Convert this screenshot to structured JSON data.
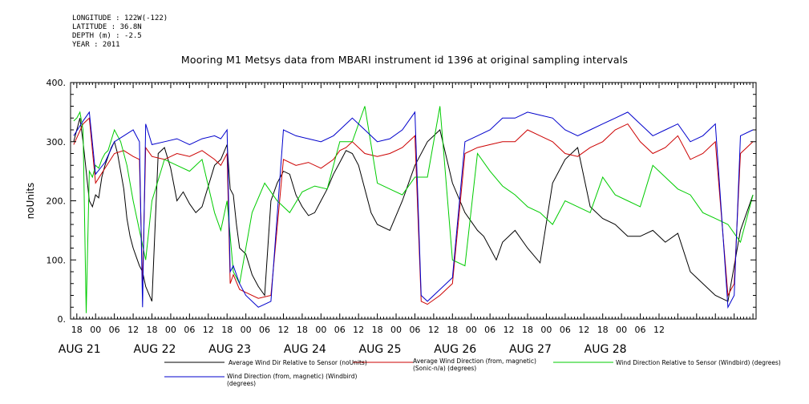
{
  "header": {
    "longitude": "LONGITUDE : 122W(-122)",
    "latitude": "LATITUDE : 36.8N",
    "depth": "DEPTH (m) : -2.5",
    "year": "YEAR : 2011"
  },
  "chart_data": {
    "type": "line",
    "title": "Mooring M1 Metsys data from MBARI instrument id 1396 at original sampling intervals",
    "ylabel": "noUnits",
    "xlabel": "",
    "ylim": [
      0,
      400
    ],
    "yticks": [
      "0.",
      "100.",
      "200.",
      "300.",
      "400."
    ],
    "xlim_hours": [
      -8,
      211
    ],
    "hour_tick_labels": [
      "18",
      "00",
      "06",
      "12",
      "18",
      "00",
      "06",
      "12",
      "18",
      "00",
      "06",
      "12",
      "18",
      "00",
      "06",
      "12",
      "18",
      "00",
      "06",
      "12",
      "18",
      "00",
      "06",
      "12",
      "18",
      "00",
      "06",
      "12",
      "18",
      "00",
      "06",
      "12"
    ],
    "day_labels": [
      "AUG 21",
      "AUG 22",
      "AUG 23",
      "AUG 24",
      "AUG 25",
      "AUG 26",
      "AUG 27",
      "AUG 28"
    ],
    "grid": false,
    "legend_placement": "bottom",
    "series": [
      {
        "name": "Average Wind Dir Relative to Sensor (noUnits)",
        "color": "#000000",
        "x": [
          -7,
          -6,
          -5,
          -4,
          -3,
          -2,
          -1,
          0,
          1,
          2,
          3,
          4,
          5,
          6,
          7,
          8,
          9,
          10,
          11,
          12,
          13,
          14,
          15,
          16,
          18,
          20,
          22,
          24,
          26,
          28,
          30,
          32,
          34,
          36,
          38,
          40,
          42,
          43,
          44,
          45,
          46,
          48,
          50,
          52,
          54,
          56,
          58,
          60,
          62,
          64,
          66,
          68,
          70,
          72,
          74,
          76,
          78,
          80,
          82,
          84,
          86,
          88,
          90,
          94,
          98,
          102,
          106,
          110,
          114,
          118,
          120,
          122,
          124,
          126,
          128,
          130,
          134,
          138,
          142,
          146,
          150,
          154,
          158,
          162,
          166,
          170,
          174,
          178,
          182,
          186,
          190,
          194,
          198,
          202,
          206,
          210
        ],
        "values": [
          300,
          320,
          340,
          300,
          250,
          200,
          190,
          210,
          205,
          240,
          260,
          275,
          290,
          300,
          280,
          250,
          220,
          170,
          140,
          120,
          105,
          90,
          80,
          55,
          30,
          280,
          290,
          255,
          200,
          215,
          195,
          180,
          190,
          225,
          260,
          270,
          295,
          220,
          210,
          160,
          120,
          110,
          75,
          55,
          40,
          200,
          230,
          250,
          245,
          210,
          190,
          175,
          180,
          200,
          220,
          245,
          265,
          285,
          280,
          260,
          220,
          180,
          160,
          150,
          200,
          260,
          300,
          320,
          230,
          180,
          165,
          150,
          140,
          120,
          100,
          130,
          150,
          120,
          95,
          230,
          270,
          290,
          190,
          170,
          160,
          140,
          140,
          150,
          130,
          145,
          80,
          60,
          40,
          30,
          150,
          210
        ]
      },
      {
        "name": "Average Wind Direction (from, magnetic) (Sonic-n/a) (degrees)",
        "color": "#cc0000",
        "x": [
          -7,
          -4,
          -2,
          0,
          3,
          6,
          9,
          12,
          14,
          15,
          16,
          18,
          22,
          26,
          30,
          34,
          38,
          40,
          42,
          43,
          44,
          46,
          48,
          52,
          56,
          60,
          64,
          68,
          72,
          76,
          78,
          80,
          82,
          86,
          90,
          94,
          98,
          102,
          104,
          106,
          110,
          114,
          118,
          122,
          126,
          130,
          134,
          138,
          142,
          146,
          150,
          154,
          158,
          162,
          166,
          170,
          174,
          178,
          182,
          186,
          190,
          194,
          198,
          202,
          204,
          206,
          210
        ],
        "values": [
          295,
          330,
          340,
          230,
          255,
          280,
          285,
          275,
          270,
          55,
          290,
          275,
          270,
          280,
          275,
          285,
          270,
          260,
          280,
          60,
          75,
          50,
          45,
          35,
          40,
          270,
          260,
          265,
          255,
          270,
          285,
          290,
          300,
          280,
          275,
          280,
          290,
          310,
          30,
          25,
          40,
          60,
          280,
          290,
          295,
          300,
          300,
          320,
          310,
          300,
          280,
          275,
          290,
          300,
          320,
          330,
          300,
          280,
          290,
          310,
          270,
          280,
          300,
          40,
          60,
          280,
          300
        ]
      },
      {
        "name": "Wind Direction Relative to Sensor (Windbird) (degrees)",
        "color": "#00cc00",
        "x": [
          -7,
          -6,
          -5,
          -4,
          -3,
          -2,
          -1,
          0,
          1,
          2,
          3,
          4,
          6,
          8,
          10,
          12,
          14,
          16,
          18,
          22,
          26,
          30,
          34,
          38,
          40,
          42,
          44,
          46,
          50,
          54,
          58,
          62,
          66,
          70,
          74,
          78,
          82,
          86,
          90,
          94,
          98,
          102,
          106,
          110,
          114,
          118,
          122,
          126,
          130,
          134,
          138,
          142,
          146,
          150,
          154,
          158,
          162,
          166,
          170,
          174,
          178,
          182,
          186,
          190,
          194,
          198,
          202,
          206,
          210
        ],
        "values": [
          335,
          340,
          350,
          320,
          10,
          250,
          240,
          260,
          255,
          270,
          280,
          285,
          320,
          300,
          260,
          200,
          150,
          100,
          200,
          270,
          260,
          250,
          270,
          180,
          150,
          200,
          80,
          60,
          180,
          230,
          200,
          180,
          215,
          225,
          220,
          300,
          300,
          360,
          230,
          220,
          210,
          240,
          240,
          360,
          100,
          90,
          280,
          250,
          225,
          210,
          190,
          180,
          160,
          200,
          190,
          180,
          240,
          210,
          200,
          190,
          260,
          240,
          220,
          210,
          180,
          170,
          160,
          130,
          210
        ]
      },
      {
        "name": "Wind Direction (from, magnetic) (Windbird) (degrees)",
        "color": "#0000cc",
        "x": [
          -7,
          -4,
          -2,
          0,
          3,
          6,
          9,
          12,
          14,
          15,
          16,
          18,
          22,
          26,
          30,
          34,
          38,
          40,
          42,
          43,
          44,
          46,
          48,
          52,
          56,
          60,
          64,
          68,
          72,
          76,
          78,
          80,
          82,
          86,
          90,
          94,
          98,
          102,
          104,
          106,
          110,
          114,
          118,
          122,
          126,
          130,
          134,
          138,
          142,
          146,
          150,
          154,
          158,
          162,
          166,
          170,
          174,
          178,
          182,
          186,
          190,
          194,
          198,
          202,
          204,
          206,
          210
        ],
        "values": [
          310,
          335,
          350,
          245,
          265,
          300,
          310,
          320,
          300,
          20,
          330,
          295,
          300,
          305,
          295,
          305,
          310,
          305,
          320,
          80,
          90,
          60,
          40,
          20,
          30,
          320,
          310,
          305,
          300,
          310,
          320,
          330,
          340,
          320,
          300,
          305,
          320,
          350,
          40,
          30,
          50,
          70,
          300,
          310,
          320,
          340,
          340,
          350,
          345,
          340,
          320,
          310,
          320,
          330,
          340,
          350,
          330,
          310,
          320,
          330,
          300,
          310,
          330,
          20,
          40,
          310,
          320
        ]
      }
    ]
  },
  "legend": [
    {
      "text": "Average Wind Dir Relative to Sensor (noUnits)",
      "color": "#000000"
    },
    {
      "text": "Average Wind Direction (from, magnetic) (Sonic-n/a) (degrees)",
      "color": "#cc0000"
    },
    {
      "text": "Wind Direction Relative to Sensor (Windbird) (degrees)",
      "color": "#00cc00"
    },
    {
      "text": "Wind Direction (from, magnetic) (Windbird) (degrees)",
      "color": "#0000cc"
    }
  ]
}
